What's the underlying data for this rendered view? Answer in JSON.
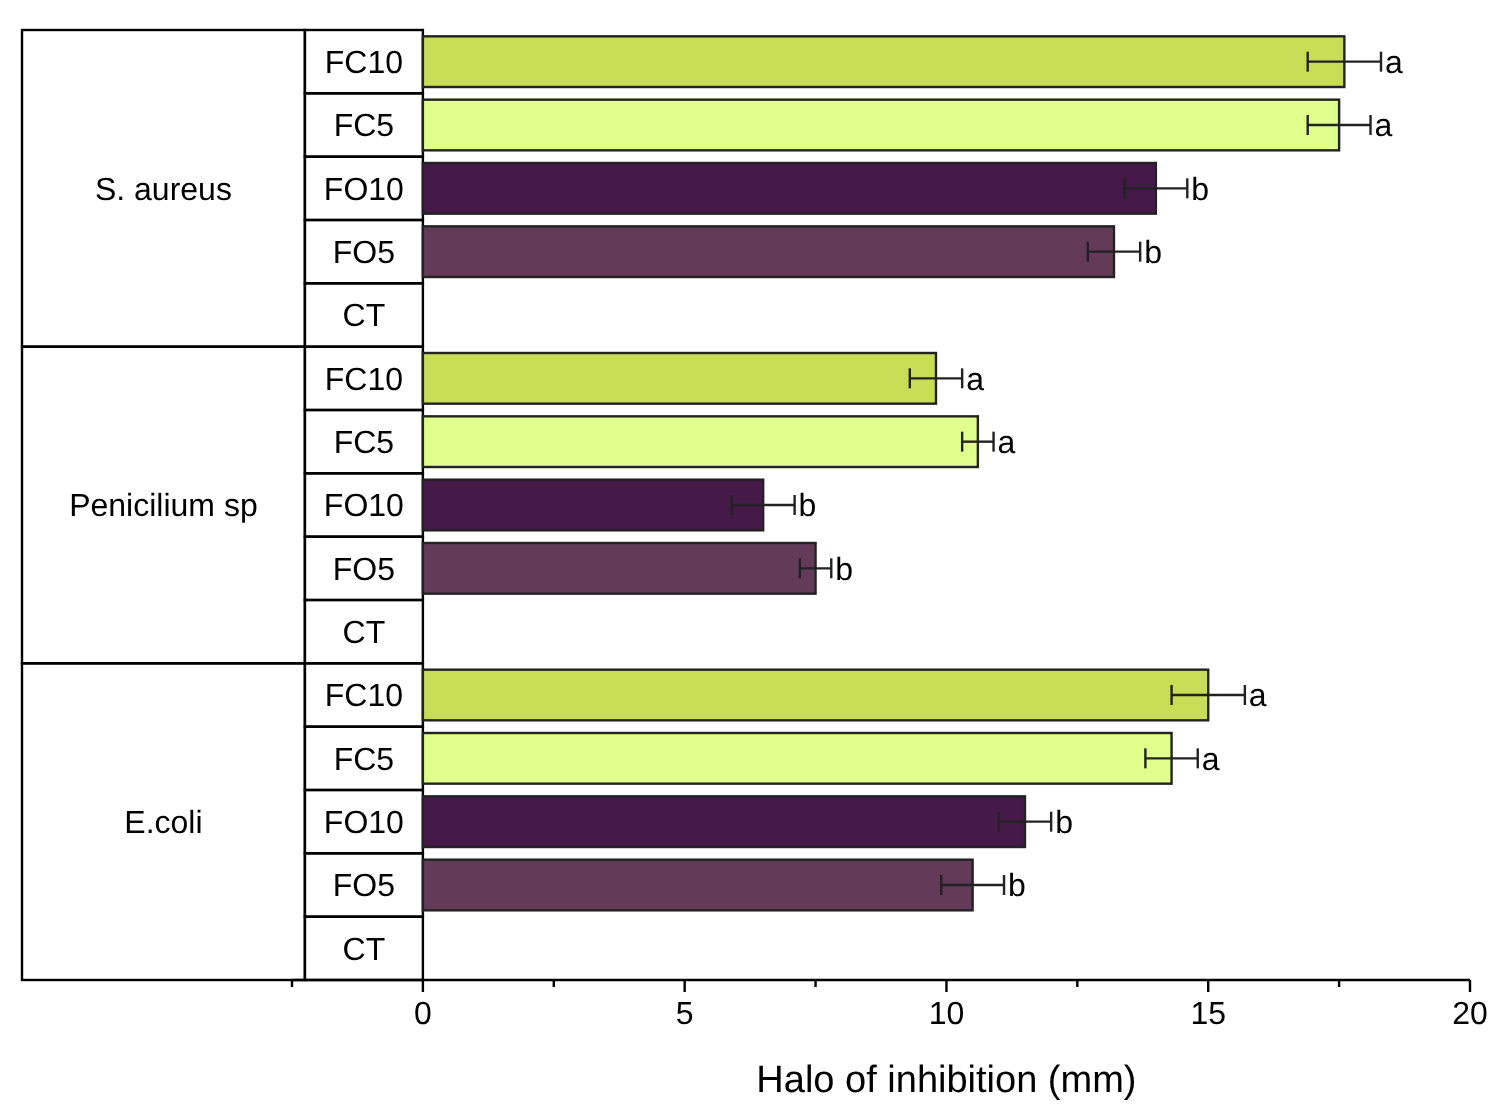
{
  "chart_data": {
    "type": "bar",
    "orientation": "horizontal",
    "categories": [
      "FC10",
      "FC5",
      "FO10",
      "FO5",
      "CT",
      "FC10",
      "FC5",
      "FO10",
      "FO5",
      "CT",
      "FC10",
      "FC5",
      "FO10",
      "FO5",
      "CT"
    ],
    "annotations": [
      "S. aureus",
      "Penicilium sp",
      "E.coli"
    ],
    "values": [
      17.6,
      17.5,
      14.0,
      13.2,
      null,
      9.8,
      10.6,
      6.5,
      7.5,
      null,
      15.0,
      14.3,
      11.5,
      10.5,
      null
    ],
    "errors": [
      0.7,
      0.6,
      0.6,
      0.5,
      null,
      0.5,
      0.3,
      0.6,
      0.3,
      null,
      0.7,
      0.5,
      0.5,
      0.6,
      null
    ],
    "colors": [
      "#c8dc55",
      "#e0ff8c",
      "#461a48",
      "#633b59",
      null,
      "#c8dc55",
      "#e0ff8c",
      "#461a48",
      "#633b59",
      null,
      "#c8dc55",
      "#e0ff8c",
      "#461a48",
      "#633b59",
      null
    ],
    "value_labels": [
      "a",
      "a",
      "b",
      "b",
      null,
      "a",
      "a",
      "b",
      "b",
      null,
      "a",
      "a",
      "b",
      "b",
      null
    ],
    "xlim": [
      -2.5,
      20
    ],
    "xticks": [
      {
        "value": -2.5,
        "label": null
      },
      0,
      {
        "value": 2.5,
        "label": null
      },
      5,
      {
        "value": 7.5,
        "label": null
      },
      10,
      {
        "value": 12.5,
        "label": null
      },
      15,
      {
        "value": 17.5,
        "label": null
      },
      20
    ],
    "xlabel": "Halo of inhibition (mm)"
  }
}
